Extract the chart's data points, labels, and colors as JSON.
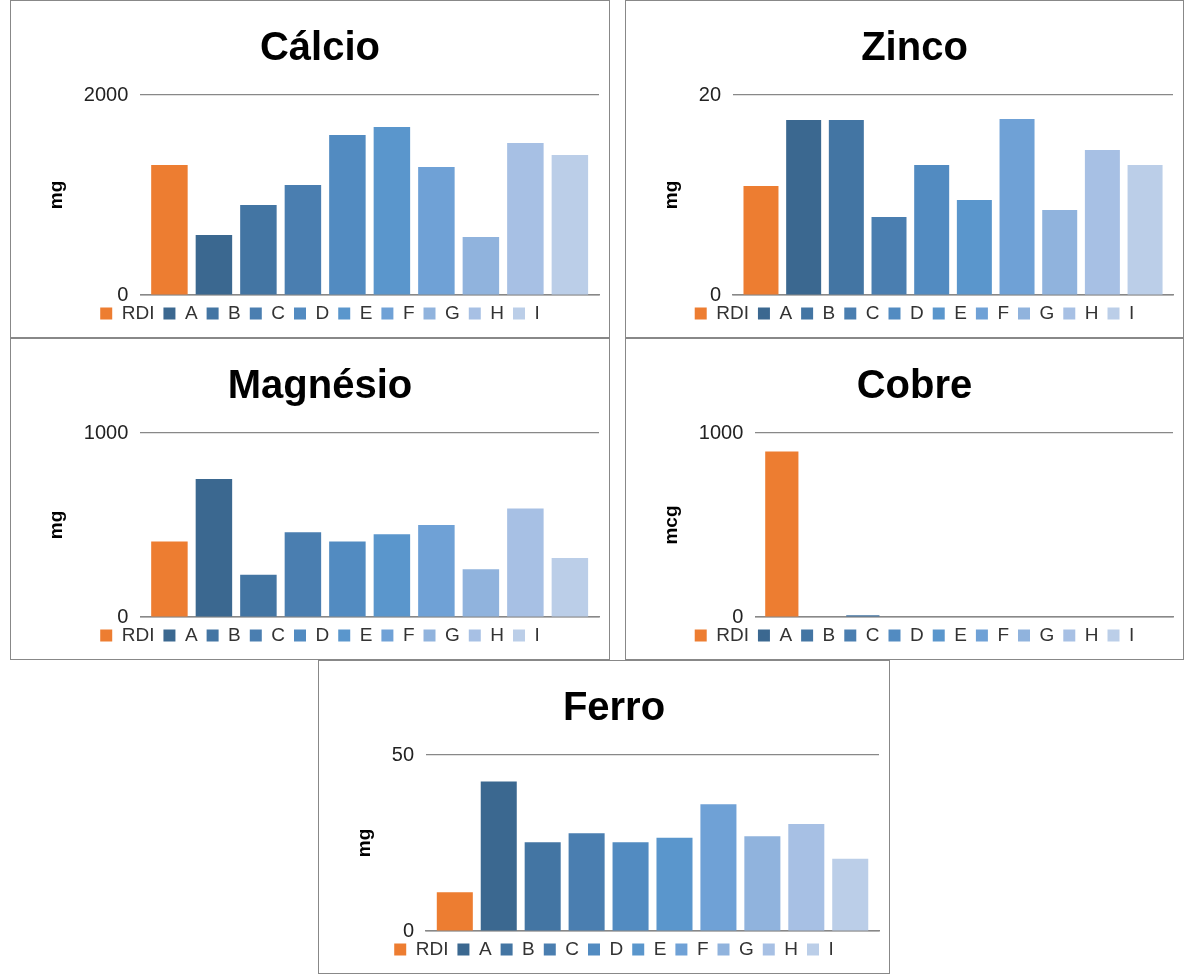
{
  "chart_data": [
    {
      "type": "bar",
      "title": "Cálcio",
      "ylabel": "mg",
      "categories": [
        null
      ],
      "ylim": [
        0,
        2000
      ],
      "yticks": [
        0,
        2000
      ],
      "grid": "y",
      "legend": "bottom",
      "series": [
        {
          "name": "RDI",
          "color": "#ed7d31",
          "values": [
            1300
          ]
        },
        {
          "name": "A",
          "color": "#3b6890",
          "values": [
            600
          ]
        },
        {
          "name": "B",
          "color": "#4375a3",
          "values": [
            900
          ]
        },
        {
          "name": "C",
          "color": "#4a7eb0",
          "values": [
            1100
          ]
        },
        {
          "name": "D",
          "color": "#528bc1",
          "values": [
            1600
          ]
        },
        {
          "name": "E",
          "color": "#5a96cc",
          "values": [
            1680
          ]
        },
        {
          "name": "F",
          "color": "#6fa1d6",
          "values": [
            1280
          ]
        },
        {
          "name": "G",
          "color": "#90b3dd",
          "values": [
            580
          ]
        },
        {
          "name": "H",
          "color": "#a7c0e4",
          "values": [
            1520
          ]
        },
        {
          "name": "I",
          "color": "#bbcee8",
          "values": [
            1400
          ]
        }
      ]
    },
    {
      "type": "bar",
      "title": "Zinco",
      "ylabel": "mg",
      "categories": [
        null
      ],
      "ylim": [
        0,
        20
      ],
      "yticks": [
        0,
        20
      ],
      "grid": "y",
      "legend": "bottom",
      "series": [
        {
          "name": "RDI",
          "color": "#ed7d31",
          "values": [
            10.9
          ]
        },
        {
          "name": "A",
          "color": "#3b6890",
          "values": [
            17.5
          ]
        },
        {
          "name": "B",
          "color": "#4375a3",
          "values": [
            17.5
          ]
        },
        {
          "name": "C",
          "color": "#4a7eb0",
          "values": [
            7.8
          ]
        },
        {
          "name": "D",
          "color": "#528bc1",
          "values": [
            13
          ]
        },
        {
          "name": "E",
          "color": "#5a96cc",
          "values": [
            9.5
          ]
        },
        {
          "name": "F",
          "color": "#6fa1d6",
          "values": [
            17.6
          ]
        },
        {
          "name": "G",
          "color": "#90b3dd",
          "values": [
            8.5
          ]
        },
        {
          "name": "H",
          "color": "#a7c0e4",
          "values": [
            14.5
          ]
        },
        {
          "name": "I",
          "color": "#bbcee8",
          "values": [
            13
          ]
        }
      ]
    },
    {
      "type": "bar",
      "title": "Magnésio",
      "ylabel": "mg",
      "categories": [
        null
      ],
      "ylim": [
        0,
        1000
      ],
      "yticks": [
        0,
        1000
      ],
      "grid": "y",
      "legend": "bottom",
      "series": [
        {
          "name": "RDI",
          "color": "#ed7d31",
          "values": [
            410
          ]
        },
        {
          "name": "A",
          "color": "#3b6890",
          "values": [
            750
          ]
        },
        {
          "name": "B",
          "color": "#4375a3",
          "values": [
            230
          ]
        },
        {
          "name": "C",
          "color": "#4a7eb0",
          "values": [
            460
          ]
        },
        {
          "name": "D",
          "color": "#528bc1",
          "values": [
            410
          ]
        },
        {
          "name": "E",
          "color": "#5a96cc",
          "values": [
            450
          ]
        },
        {
          "name": "F",
          "color": "#6fa1d6",
          "values": [
            500
          ]
        },
        {
          "name": "G",
          "color": "#90b3dd",
          "values": [
            260
          ]
        },
        {
          "name": "H",
          "color": "#a7c0e4",
          "values": [
            590
          ]
        },
        {
          "name": "I",
          "color": "#bbcee8",
          "values": [
            320
          ]
        }
      ]
    },
    {
      "type": "bar",
      "title": "Cobre",
      "ylabel": "mcg",
      "categories": [
        null
      ],
      "ylim": [
        0,
        1000
      ],
      "yticks": [
        0,
        1000
      ],
      "grid": "y",
      "legend": "bottom",
      "series": [
        {
          "name": "RDI",
          "color": "#ed7d31",
          "values": [
            900
          ]
        },
        {
          "name": "A",
          "color": "#3b6890",
          "values": [
            null
          ]
        },
        {
          "name": "B",
          "color": "#4375a3",
          "values": [
            10
          ]
        },
        {
          "name": "C",
          "color": "#4a7eb0",
          "values": [
            null
          ]
        },
        {
          "name": "D",
          "color": "#528bc1",
          "values": [
            null
          ]
        },
        {
          "name": "E",
          "color": "#5a96cc",
          "values": [
            null
          ]
        },
        {
          "name": "F",
          "color": "#6fa1d6",
          "values": [
            null
          ]
        },
        {
          "name": "G",
          "color": "#90b3dd",
          "values": [
            null
          ]
        },
        {
          "name": "H",
          "color": "#a7c0e4",
          "values": [
            null
          ]
        },
        {
          "name": "I",
          "color": "#bbcee8",
          "values": [
            null
          ]
        }
      ]
    },
    {
      "type": "bar",
      "title": "Ferro",
      "ylabel": "mg",
      "categories": [
        null
      ],
      "ylim": [
        0,
        50
      ],
      "yticks": [
        0,
        50
      ],
      "grid": "y",
      "legend": "bottom",
      "series": [
        {
          "name": "RDI",
          "color": "#ed7d31",
          "values": [
            11
          ]
        },
        {
          "name": "A",
          "color": "#3b6890",
          "values": [
            42.5
          ]
        },
        {
          "name": "B",
          "color": "#4375a3",
          "values": [
            25.2
          ]
        },
        {
          "name": "C",
          "color": "#4a7eb0",
          "values": [
            27.8
          ]
        },
        {
          "name": "D",
          "color": "#528bc1",
          "values": [
            25.2
          ]
        },
        {
          "name": "E",
          "color": "#5a96cc",
          "values": [
            26.5
          ]
        },
        {
          "name": "F",
          "color": "#6fa1d6",
          "values": [
            36
          ]
        },
        {
          "name": "G",
          "color": "#90b3dd",
          "values": [
            26.9
          ]
        },
        {
          "name": "H",
          "color": "#a7c0e4",
          "values": [
            30.4
          ]
        },
        {
          "name": "I",
          "color": "#bbcee8",
          "values": [
            20.5
          ]
        }
      ]
    }
  ]
}
